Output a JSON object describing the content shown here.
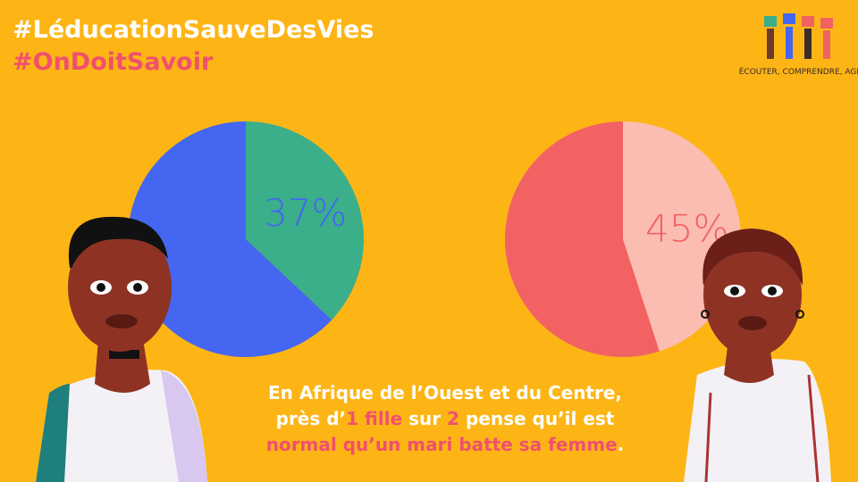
{
  "hashtags": [
    "#LéducationSauveDesVies",
    "#OnDoitSavoir"
  ],
  "logo_text": "ÉCOUTER, COMPRENDRE, AGIR",
  "chart_data": [
    {
      "type": "pie",
      "values": [
        37,
        63
      ],
      "value_labels": [
        "37%",
        null
      ],
      "colors": [
        "#3bae8a",
        "#4466f0"
      ],
      "label_color": "#4466f0"
    },
    {
      "type": "pie",
      "values": [
        45,
        55
      ],
      "value_labels": [
        "45%",
        null
      ],
      "colors": [
        "#fbbcb2",
        "#f26262"
      ],
      "label_color": "#f26262"
    }
  ],
  "caption": {
    "lines": [
      [
        {
          "text": "En Afrique de l’Ouest et du Centre,"
        }
      ],
      [
        {
          "text": "près d’"
        },
        {
          "text": "1 fille",
          "highlight": true
        },
        {
          "text": " sur "
        },
        {
          "text": "2",
          "highlight": true
        },
        {
          "text": " pense qu’il est"
        }
      ],
      [
        {
          "text": "normal qu’un mari batte sa femme",
          "highlight": true
        },
        {
          "text": "."
        }
      ]
    ]
  }
}
